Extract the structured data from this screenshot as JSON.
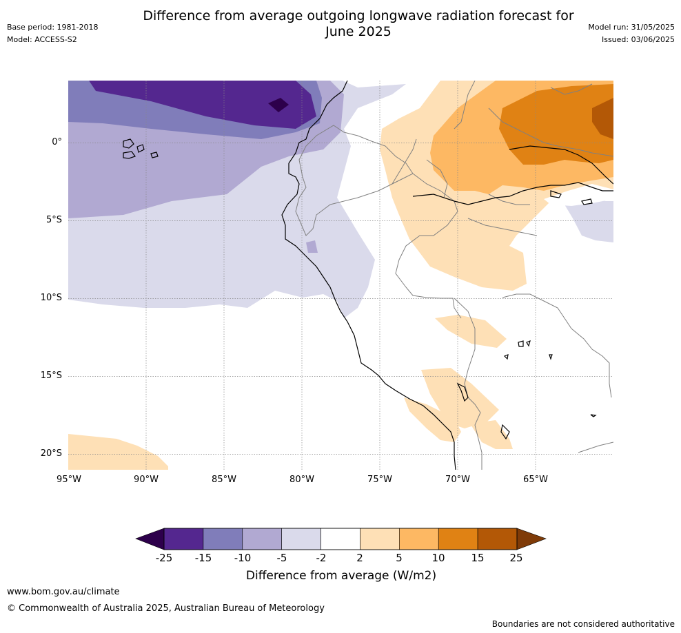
{
  "header": {
    "title_line1": "Difference from average outgoing longwave radiation forecast for",
    "title_line2": "June 2025",
    "base_period": "Base period: 1981-2018",
    "model": "Model: ACCESS-S2",
    "model_run": "Model run: 31/05/2025",
    "issued": "Issued: 03/06/2025"
  },
  "map": {
    "lat_ticks": [
      "0°",
      "5°S",
      "10°S",
      "15°S",
      "20°S"
    ],
    "lon_ticks": [
      "95°W",
      "90°W",
      "85°W",
      "80°W",
      "75°W",
      "70°W",
      "65°W"
    ],
    "lon_range": [
      -95,
      -60
    ],
    "lat_range": [
      -21,
      4
    ],
    "grid": true
  },
  "colorbar": {
    "ticks": [
      "-25",
      "-15",
      "-10",
      "-5",
      "-2",
      "2",
      "5",
      "10",
      "15",
      "25"
    ],
    "colors": [
      "#54278f",
      "#807dba",
      "#b1a9d2",
      "#dadaeb",
      "#ffffff",
      "#fee0b6",
      "#fdb863",
      "#e08214",
      "#b35806"
    ],
    "under_color": "#2d004b",
    "over_color": "#7f3b08",
    "label": "Difference from average (W/m2)"
  },
  "footer": {
    "website": "www.bom.gov.au/climate",
    "copyright": "© Commonwealth of Australia 2025, Australian Bureau of Meteorology",
    "disclaimer": "Boundaries are not considered authoritative"
  }
}
